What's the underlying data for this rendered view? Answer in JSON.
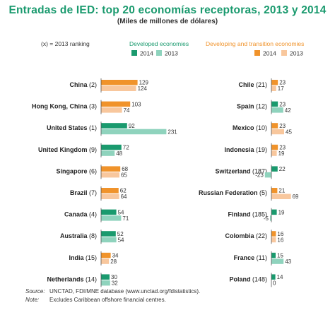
{
  "chart_data": {
    "type": "bar",
    "title": "Entradas de IED: top 20 economías receptoras, 2013 y 2014",
    "subtitle": "(Miles de millones de dólares)",
    "note_ranking": "(x) = 2013 ranking",
    "groups": {
      "developed": {
        "label": "Developed economies",
        "label_color": "#1a9a6e",
        "color_2014": "#1a9a6e",
        "color_2013": "#8fd3bd"
      },
      "developing": {
        "label": "Developing and transition economies",
        "label_color": "#f0932b",
        "color_2014": "#f0932b",
        "color_2013": "#f8c79d"
      }
    },
    "legend": {
      "year_2014": "2014",
      "year_2013": "2013"
    },
    "series": [
      {
        "name": "2014"
      },
      {
        "name": "2013"
      }
    ],
    "panels": [
      {
        "economies": [
          {
            "label": "China",
            "rank": "(2)",
            "group": "developing",
            "v2014": 129,
            "v2013": 124
          },
          {
            "label": "Hong Kong, China",
            "rank": "(3)",
            "group": "developing",
            "v2014": 103,
            "v2013": 74
          },
          {
            "label": "United States",
            "rank": "(1)",
            "group": "developed",
            "v2014": 92,
            "v2013": 231
          },
          {
            "label": "United Kingdom",
            "rank": "(9)",
            "group": "developed",
            "v2014": 72,
            "v2013": 48
          },
          {
            "label": "Singapore",
            "rank": "(6)",
            "group": "developing",
            "v2014": 68,
            "v2013": 65
          },
          {
            "label": "Brazil",
            "rank": "(7)",
            "group": "developing",
            "v2014": 62,
            "v2013": 64
          },
          {
            "label": "Canada",
            "rank": "(4)",
            "group": "developed",
            "v2014": 54,
            "v2013": 71
          },
          {
            "label": "Australia",
            "rank": "(8)",
            "group": "developed",
            "v2014": 52,
            "v2013": 54
          },
          {
            "label": "India",
            "rank": "(15)",
            "group": "developing",
            "v2014": 34,
            "v2013": 28
          },
          {
            "label": "Netherlands",
            "rank": "(14)",
            "group": "developed",
            "v2014": 30,
            "v2013": 32
          }
        ]
      },
      {
        "economies": [
          {
            "label": "Chile",
            "rank": "(21)",
            "group": "developing",
            "v2014": 23,
            "v2013": 17
          },
          {
            "label": "Spain",
            "rank": "(12)",
            "group": "developed",
            "v2014": 23,
            "v2013": 42
          },
          {
            "label": "Mexico",
            "rank": "(10)",
            "group": "developing",
            "v2014": 23,
            "v2013": 45
          },
          {
            "label": "Indonesia",
            "rank": "(19)",
            "group": "developing",
            "v2014": 23,
            "v2013": 19
          },
          {
            "label": "Switzerland",
            "rank": "(187)",
            "group": "developed",
            "v2014": 22,
            "v2013": -23
          },
          {
            "label": "Russian Federation",
            "rank": "(5)",
            "group": "developing",
            "v2014": 21,
            "v2013": 69
          },
          {
            "label": "Finland",
            "rank": "(185)",
            "group": "developed",
            "v2014": 19,
            "v2013": -5
          },
          {
            "label": "Colombia",
            "rank": "(22)",
            "group": "developing",
            "v2014": 16,
            "v2013": 16
          },
          {
            "label": "France",
            "rank": "(11)",
            "group": "developed",
            "v2014": 15,
            "v2013": 43
          },
          {
            "label": "Poland",
            "rank": "(148)",
            "group": "developed",
            "v2014": 14,
            "v2013": 0
          }
        ]
      }
    ]
  },
  "footer": {
    "source_key": "Source:",
    "source_text": "UNCTAD, FDI/MNE database (www.unctad.org/fdistatistics).",
    "note_key": "Note:",
    "note_text": "Excludes Caribbean offshore financial centres."
  }
}
